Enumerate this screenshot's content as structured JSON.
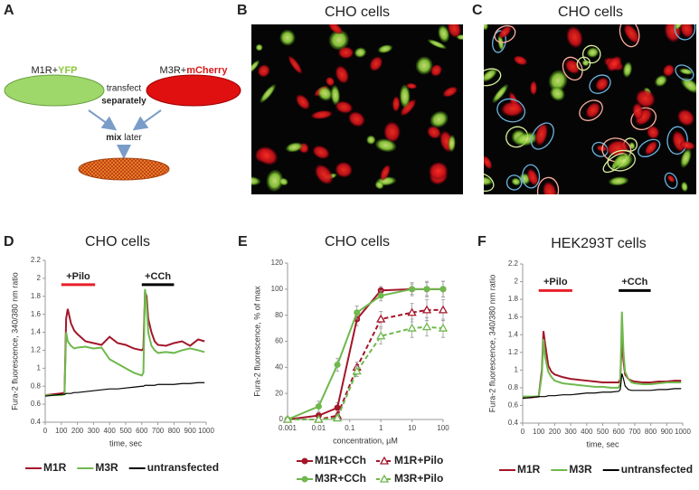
{
  "figure": {
    "panel_a": {
      "letter": "A",
      "left_label": [
        "M1R+",
        "YFP"
      ],
      "right_label": [
        "M3R+",
        "mCherry"
      ],
      "middle": [
        "transfect",
        "separately"
      ],
      "mix": [
        "mix",
        "later"
      ]
    },
    "panel_b": {
      "letter": "B",
      "title": "CHO cells"
    },
    "panel_c": {
      "letter": "C",
      "title": "CHO cells"
    }
  },
  "chart_data": [
    {
      "type": "line",
      "panel": "D",
      "title": "CHO cells",
      "y_label": "Fura-2 fluorescence, 340/380 nm ratio",
      "x_label": "time, sec",
      "xlim": [
        0,
        1000
      ],
      "xticks": [
        0,
        100,
        200,
        300,
        400,
        500,
        600,
        700,
        800,
        900,
        1000
      ],
      "ylim": [
        0.4,
        2.2
      ],
      "yticks": [
        0.4,
        0.6,
        0.8,
        1,
        1.2,
        1.4,
        1.6,
        1.8,
        2,
        2.2
      ],
      "grid": false,
      "legend": "bottom",
      "annotations": [
        {
          "text": "+Pilo",
          "x": [
            100,
            310
          ],
          "y": 1.93,
          "color": "#e8202a"
        },
        {
          "text": "+CCh",
          "x": [
            600,
            800
          ],
          "y": 1.93,
          "color": "#000000"
        }
      ],
      "x": [
        0,
        50,
        100,
        120,
        130,
        140,
        160,
        180,
        200,
        250,
        300,
        350,
        400,
        450,
        500,
        550,
        600,
        610,
        620,
        630,
        640,
        660,
        680,
        700,
        750,
        800,
        850,
        900,
        950,
        990
      ],
      "series": [
        {
          "name": "M1R",
          "color": "#a3162a",
          "values": [
            0.7,
            0.71,
            0.72,
            0.73,
            1.55,
            1.66,
            1.5,
            1.42,
            1.38,
            1.3,
            1.28,
            1.26,
            1.35,
            1.28,
            1.26,
            1.22,
            1.2,
            1.22,
            1.85,
            1.8,
            1.55,
            1.4,
            1.3,
            1.26,
            1.25,
            1.28,
            1.3,
            1.25,
            1.32,
            1.3
          ]
        },
        {
          "name": "M3R",
          "color": "#6fb84d",
          "values": [
            0.7,
            0.7,
            0.7,
            0.71,
            1.4,
            1.3,
            1.25,
            1.22,
            1.23,
            1.24,
            1.22,
            1.23,
            1.1,
            1.05,
            1.0,
            0.95,
            0.92,
            0.95,
            1.88,
            1.7,
            1.4,
            1.25,
            1.2,
            1.17,
            1.18,
            1.17,
            1.2,
            1.22,
            1.2,
            1.18
          ]
        },
        {
          "name": "untransfected",
          "color": "#000000",
          "values": [
            0.69,
            0.7,
            0.71,
            0.71,
            0.72,
            0.72,
            0.72,
            0.73,
            0.73,
            0.74,
            0.75,
            0.76,
            0.77,
            0.77,
            0.78,
            0.79,
            0.8,
            0.8,
            0.81,
            0.81,
            0.81,
            0.81,
            0.81,
            0.82,
            0.82,
            0.82,
            0.83,
            0.83,
            0.84,
            0.84
          ]
        }
      ]
    },
    {
      "type": "line",
      "panel": "E",
      "title": "CHO cells",
      "y_label": "Fura-2 fluorescence, % of max",
      "x_label": "concentration, µM",
      "xscale": "log",
      "xlim": [
        0.001,
        100
      ],
      "xticks": [
        0.001,
        0.01,
        0.1,
        1,
        10,
        100
      ],
      "ylim": [
        0,
        120
      ],
      "yticks": [
        0,
        20,
        40,
        60,
        80,
        100,
        120
      ],
      "grid": false,
      "legend": "bottom",
      "x": [
        0.001,
        0.01,
        0.04,
        0.17,
        1,
        10,
        30,
        100
      ],
      "series": [
        {
          "name": "M1R+CCh",
          "color": "#a3162a",
          "marker": "circle",
          "dashed": false,
          "values": [
            0,
            3,
            9,
            77,
            99,
            100,
            100,
            100
          ],
          "errors": [
            1,
            2,
            4,
            5,
            3,
            4,
            5,
            6
          ]
        },
        {
          "name": "M1R+Pilo",
          "color": "#a3162a",
          "marker": "triangle",
          "dashed": true,
          "values": [
            0,
            0,
            3,
            40,
            77,
            82,
            84,
            84
          ],
          "errors": [
            1,
            1,
            2,
            4,
            6,
            7,
            8,
            8
          ]
        },
        {
          "name": "M3R+CCh",
          "color": "#6fb84d",
          "marker": "circle",
          "dashed": false,
          "values": [
            0,
            10,
            42,
            82,
            95,
            100,
            100,
            100
          ],
          "errors": [
            1,
            4,
            5,
            5,
            4,
            5,
            6,
            6
          ]
        },
        {
          "name": "M3R+Pilo",
          "color": "#6fb84d",
          "marker": "triangle",
          "dashed": true,
          "values": [
            0,
            0,
            1,
            37,
            64,
            70,
            71,
            70
          ],
          "errors": [
            1,
            1,
            2,
            4,
            6,
            7,
            7,
            7
          ]
        }
      ]
    },
    {
      "type": "line",
      "panel": "F",
      "title": "HEK293T cells",
      "y_label": "Fura-2 fluorescence, 340/380 nm ratio",
      "x_label": "time, sec",
      "xlim": [
        0,
        1000
      ],
      "xticks": [
        0,
        100,
        200,
        300,
        400,
        500,
        600,
        700,
        800,
        900,
        1000
      ],
      "ylim": [
        0.4,
        2.2
      ],
      "yticks": [
        0.4,
        0.6,
        0.8,
        1,
        1.2,
        1.4,
        1.6,
        1.8,
        2,
        2.2
      ],
      "grid": false,
      "legend": "bottom",
      "annotations": [
        {
          "text": "+Pilo",
          "x": [
            100,
            310
          ],
          "y": 1.9,
          "color": "#e8202a"
        },
        {
          "text": "+CCh",
          "x": [
            600,
            800
          ],
          "y": 1.9,
          "color": "#000000"
        }
      ],
      "x": [
        0,
        50,
        100,
        120,
        130,
        140,
        160,
        180,
        200,
        250,
        300,
        350,
        400,
        450,
        500,
        550,
        600,
        610,
        620,
        630,
        640,
        660,
        680,
        700,
        750,
        800,
        850,
        900,
        950,
        990
      ],
      "series": [
        {
          "name": "M1R",
          "color": "#a3162a",
          "values": [
            0.69,
            0.69,
            0.7,
            1.0,
            1.44,
            1.3,
            1.05,
            0.98,
            0.95,
            0.92,
            0.9,
            0.89,
            0.88,
            0.87,
            0.86,
            0.86,
            0.86,
            0.9,
            1.35,
            1.1,
            0.95,
            0.9,
            0.88,
            0.87,
            0.86,
            0.86,
            0.87,
            0.87,
            0.88,
            0.88
          ]
        },
        {
          "name": "M3R",
          "color": "#6fb84d",
          "values": [
            0.7,
            0.7,
            0.7,
            0.95,
            1.35,
            1.15,
            0.98,
            0.92,
            0.88,
            0.85,
            0.84,
            0.83,
            0.82,
            0.81,
            0.81,
            0.8,
            0.8,
            0.85,
            1.66,
            1.2,
            0.98,
            0.9,
            0.86,
            0.85,
            0.84,
            0.84,
            0.85,
            0.86,
            0.86,
            0.86
          ]
        },
        {
          "name": "untransfected",
          "color": "#000000",
          "values": [
            0.68,
            0.69,
            0.7,
            0.7,
            0.7,
            0.7,
            0.71,
            0.71,
            0.71,
            0.72,
            0.72,
            0.73,
            0.74,
            0.74,
            0.75,
            0.75,
            0.76,
            0.78,
            0.96,
            0.9,
            0.82,
            0.78,
            0.77,
            0.77,
            0.77,
            0.77,
            0.78,
            0.78,
            0.79,
            0.79
          ]
        }
      ]
    }
  ]
}
